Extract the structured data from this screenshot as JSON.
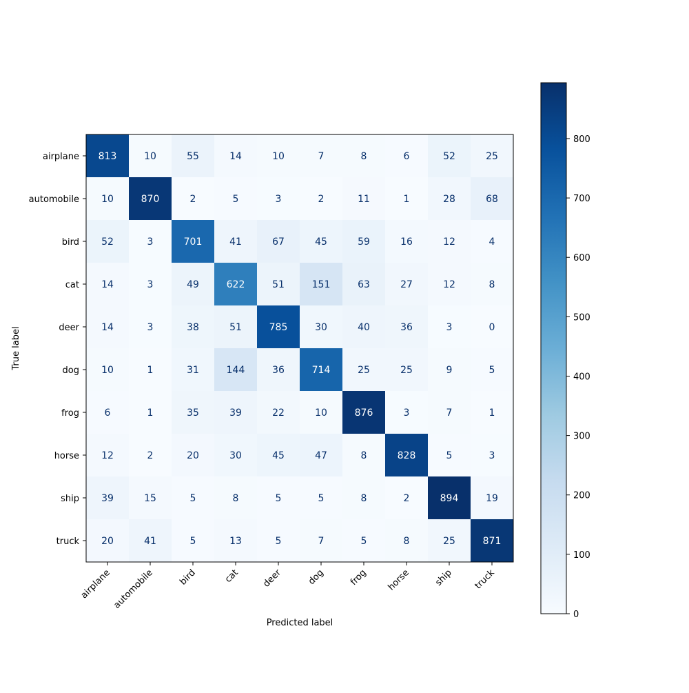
{
  "chart_data": {
    "type": "heatmap",
    "title": "",
    "xlabel": "Predicted label",
    "ylabel": "True label",
    "x_categories": [
      "airplane",
      "automobile",
      "bird",
      "cat",
      "deer",
      "dog",
      "frog",
      "horse",
      "ship",
      "truck"
    ],
    "y_categories": [
      "airplane",
      "automobile",
      "bird",
      "cat",
      "deer",
      "dog",
      "frog",
      "horse",
      "ship",
      "truck"
    ],
    "values": [
      [
        813,
        10,
        55,
        14,
        10,
        7,
        8,
        6,
        52,
        25
      ],
      [
        10,
        870,
        2,
        5,
        3,
        2,
        11,
        1,
        28,
        68
      ],
      [
        52,
        3,
        701,
        41,
        67,
        45,
        59,
        16,
        12,
        4
      ],
      [
        14,
        3,
        49,
        622,
        51,
        151,
        63,
        27,
        12,
        8
      ],
      [
        14,
        3,
        38,
        51,
        785,
        30,
        40,
        36,
        3,
        0
      ],
      [
        10,
        1,
        31,
        144,
        36,
        714,
        25,
        25,
        9,
        5
      ],
      [
        6,
        1,
        35,
        39,
        22,
        10,
        876,
        3,
        7,
        1
      ],
      [
        12,
        2,
        20,
        30,
        45,
        47,
        8,
        828,
        5,
        3
      ],
      [
        39,
        15,
        5,
        8,
        5,
        5,
        8,
        2,
        894,
        19
      ],
      [
        20,
        41,
        5,
        13,
        5,
        7,
        5,
        8,
        25,
        871
      ]
    ],
    "colormap": "Blues",
    "colorbar": {
      "range": [
        0,
        894
      ],
      "ticks": [
        0,
        100,
        200,
        300,
        400,
        500,
        600,
        700,
        800
      ]
    },
    "grid": false
  }
}
